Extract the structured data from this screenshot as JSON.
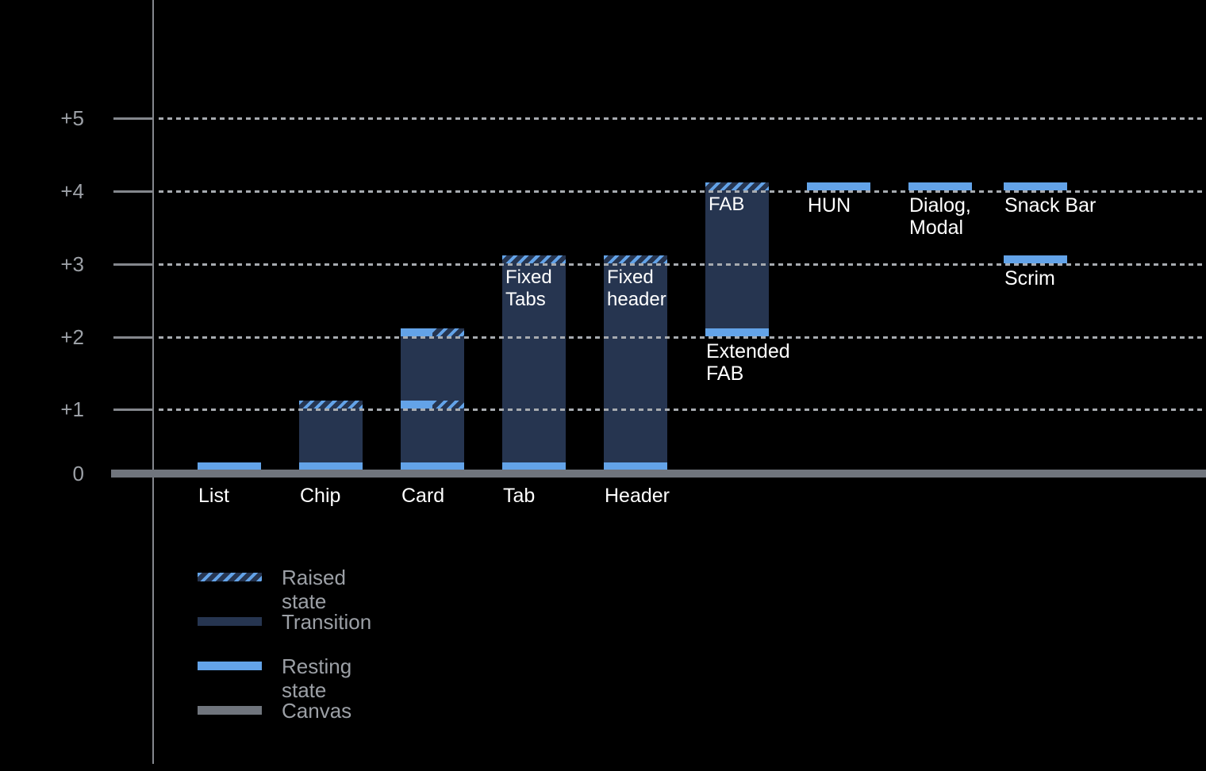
{
  "chart_data": {
    "type": "bar",
    "title": "",
    "y_axis": {
      "tick_labels": [
        "+5",
        "+4",
        "+3",
        "+2",
        "+1",
        "0"
      ],
      "tick_levels": [
        5,
        4,
        3,
        2,
        1,
        0
      ],
      "range": [
        0,
        5
      ],
      "gridlines": "dotted",
      "gridline_levels": [
        1,
        2,
        3,
        4,
        5
      ]
    },
    "components": [
      {
        "name": "list",
        "label_lines": [
          "List"
        ],
        "label_level": 0,
        "bands": [
          {
            "level": 0,
            "style": "resting"
          }
        ]
      },
      {
        "name": "chip",
        "label_lines": [
          "Chip"
        ],
        "label_level": 0,
        "transition_range": [
          0,
          1
        ],
        "bands": [
          {
            "level": 1,
            "style": "raised"
          },
          {
            "level": 0,
            "style": "resting"
          }
        ]
      },
      {
        "name": "card",
        "label_lines": [
          "Card"
        ],
        "label_level": 0,
        "transition_range": [
          0,
          2
        ],
        "bands": [
          {
            "level": 2,
            "style": "resting+raised"
          },
          {
            "level": 1,
            "style": "resting+raised"
          },
          {
            "level": 0,
            "style": "resting"
          }
        ]
      },
      {
        "name": "tab",
        "label_lines": [
          "Tab"
        ],
        "label_level": 0,
        "bar_label_lines": [
          "Fixed",
          "Tabs"
        ],
        "transition_range": [
          0,
          3
        ],
        "bands": [
          {
            "level": 3,
            "style": "raised"
          },
          {
            "level": 0,
            "style": "resting"
          }
        ]
      },
      {
        "name": "header",
        "label_lines": [
          "Header"
        ],
        "label_level": 0,
        "bar_label_lines": [
          "Fixed",
          "header"
        ],
        "transition_range": [
          0,
          3
        ],
        "bands": [
          {
            "level": 3,
            "style": "raised"
          },
          {
            "level": 0,
            "style": "resting"
          }
        ]
      },
      {
        "name": "extended-fab",
        "label_lines": [
          "Extended",
          "FAB"
        ],
        "label_level": 2,
        "bar_label_lines": [
          "FAB"
        ],
        "transition_range": [
          2,
          4
        ],
        "bands": [
          {
            "level": 4,
            "style": "raised"
          },
          {
            "level": 2,
            "style": "resting"
          }
        ]
      },
      {
        "name": "hun",
        "label_lines": [
          "HUN"
        ],
        "label_level": 4,
        "bands": [
          {
            "level": 4,
            "style": "resting"
          }
        ]
      },
      {
        "name": "dialog-modal",
        "label_lines": [
          "Dialog,",
          "Modal"
        ],
        "label_level": 4,
        "bands": [
          {
            "level": 4,
            "style": "resting"
          }
        ]
      },
      {
        "name": "snack-bar",
        "label_lines": [
          "Snack Bar"
        ],
        "label_level": 4,
        "bands": [
          {
            "level": 4,
            "style": "resting"
          }
        ]
      },
      {
        "name": "scrim",
        "label_lines": [
          "Scrim"
        ],
        "label_level": 3,
        "bands": [
          {
            "level": 3,
            "style": "resting"
          }
        ]
      }
    ],
    "legend": {
      "position": "bottom-left",
      "entries": [
        {
          "label": "Raised state",
          "swatch": "raised"
        },
        {
          "label": "Transition",
          "swatch": "transition"
        },
        {
          "label": "Resting state",
          "swatch": "resting"
        },
        {
          "label": "Canvas",
          "swatch": "canvas"
        }
      ]
    },
    "colors": {
      "background": "#000000",
      "resting": "#63A3E8",
      "transition": "#263550",
      "canvas": "#70757D",
      "axis": "#84878D",
      "gridline": "#A7ABB0",
      "tick_label": "#9CA0A6",
      "component_label": "#FFFFFF"
    }
  }
}
